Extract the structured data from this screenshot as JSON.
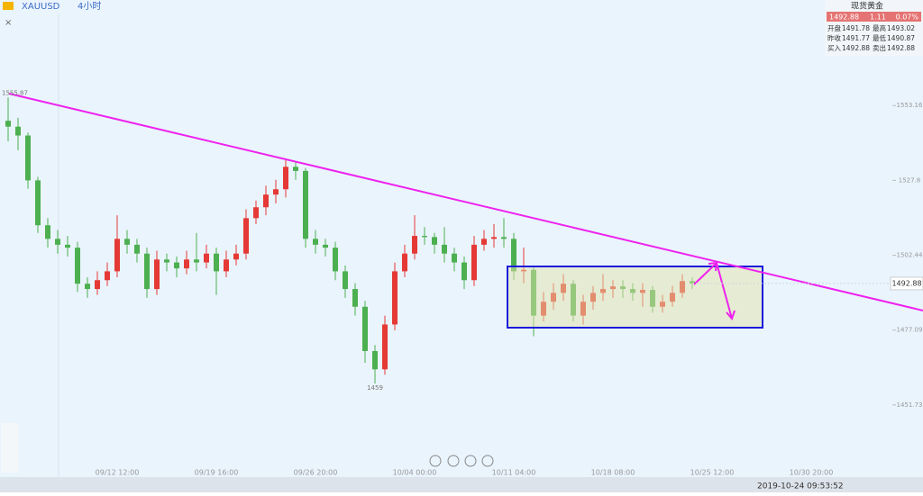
{
  "toolbar": {
    "symbol": "XAUUSD",
    "interval": "4小时"
  },
  "quote": {
    "title": "现货黄金",
    "price": "1492.88",
    "change": "1.11",
    "change_pct": "0.07%",
    "rows": [
      [
        "开盘",
        "1491.78",
        "最高",
        "1493.02"
      ],
      [
        "昨收",
        "1491.77",
        "最低",
        "1490.87"
      ],
      [
        "买入",
        "1492.88",
        "卖出",
        "1492.88"
      ]
    ]
  },
  "status": {
    "time": "2019-10-24 09:53:52"
  },
  "chart_data": {
    "type": "candlestick",
    "up_color": "#e53935",
    "down_color": "#4caf50",
    "ylim": [
      1427.3,
      1588.9
    ],
    "yticks": [
      1553.16,
      1527.8,
      1502.44,
      1477.09,
      1451.73
    ],
    "categories": [
      null,
      null,
      null,
      null,
      null,
      null,
      null,
      null,
      null,
      null,
      null,
      "09/12 12:00",
      null,
      null,
      null,
      null,
      null,
      null,
      null,
      null,
      null,
      "09/19 16:00",
      null,
      null,
      null,
      null,
      null,
      null,
      null,
      null,
      null,
      "09/26 20:00",
      null,
      null,
      null,
      null,
      null,
      null,
      null,
      null,
      null,
      "10/04 00:00",
      null,
      null,
      null,
      null,
      null,
      null,
      null,
      null,
      null,
      "10/11 04:00",
      null,
      null,
      null,
      null,
      null,
      null,
      null,
      null,
      null,
      "10/18 08:00",
      null,
      null,
      null,
      null,
      null,
      null,
      null,
      null,
      null,
      "10/25 12:00",
      null,
      null,
      null,
      null,
      null,
      null,
      null,
      null,
      null,
      "10/30 20:00",
      null
    ],
    "open": [
      1548,
      1546,
      1543,
      1527.8,
      1512.6,
      1508,
      1506,
      1505,
      1492.8,
      1491,
      1494,
      1497,
      1508,
      1506,
      1503,
      1491,
      1501,
      1500,
      1498,
      1501,
      1500,
      1503,
      1497,
      1501,
      1503,
      1515,
      1518.7,
      1523,
      1524.8,
      1532.4,
      1531,
      1508,
      1506,
      1505,
      1497,
      1491,
      1485,
      1470,
      1463.8,
      1479,
      1497,
      1503,
      1509,
      1508.6,
      1506,
      1503,
      1500,
      1494,
      1506,
      1508,
      1508.6,
      1508,
      1497,
      1497.5,
      1482,
      1486.7,
      1489.7,
      1492.8,
      1482,
      1486.7,
      1489.7,
      1491,
      1491.9,
      1491,
      1489.7,
      1490.7,
      1485,
      1486.7,
      1489.7,
      1493.7,
      null,
      null,
      null,
      null,
      null,
      null,
      null,
      null,
      null,
      null,
      null,
      null,
      null
    ],
    "high": [
      1555.87,
      1549,
      1544,
      1529,
      1515,
      1511,
      1509,
      1507,
      1495,
      1497,
      1500,
      1516,
      1511,
      1508,
      1505,
      1504,
      1503,
      1502,
      1504,
      1510,
      1506,
      1505,
      1504,
      1506,
      1518,
      1521,
      1526,
      1528,
      1535,
      1534,
      1532,
      1511,
      1508,
      1507,
      1499,
      1493,
      1487,
      1472,
      1482,
      1500,
      1506,
      1516,
      1512,
      1510,
      1512,
      1505,
      1502,
      1509,
      1511,
      1513,
      1515,
      1510,
      1505,
      1499,
      1490,
      1493,
      1496,
      1494,
      1489,
      1492,
      1496,
      1494,
      1494,
      1493,
      1493,
      1492,
      1489,
      1492,
      1496,
      1495,
      null,
      null,
      null,
      null,
      null,
      null,
      null,
      null,
      null,
      null,
      null,
      null,
      null
    ],
    "low": [
      1541,
      1538,
      1525,
      1510,
      1505,
      1503,
      1502,
      1490,
      1488,
      1489,
      1492,
      1495,
      1503,
      1500,
      1488,
      1489,
      1497,
      1495,
      1496,
      1497,
      1498,
      1489,
      1495,
      1499,
      1501,
      1513,
      1516,
      1520,
      1522,
      1528,
      1505,
      1503,
      1502,
      1494,
      1488,
      1482,
      1466,
      1459,
      1462,
      1477,
      1495,
      1501,
      1506,
      1503,
      1500,
      1497,
      1491,
      1492,
      1504,
      1505,
      1505,
      1494,
      1493,
      1475,
      1480,
      1484,
      1487,
      1480,
      1479,
      1484,
      1487,
      1488,
      1488,
      1487,
      1485,
      1483,
      1483,
      1485,
      1488,
      1491,
      null,
      null,
      null,
      null,
      null,
      null,
      null,
      null,
      null,
      null,
      null,
      null,
      null
    ],
    "close": [
      1546,
      1543,
      1527.8,
      1512.6,
      1508,
      1506,
      1505,
      1492.8,
      1491,
      1494,
      1497,
      1508,
      1506,
      1503,
      1491,
      1501,
      1500,
      1498,
      1501,
      1500,
      1503,
      1497,
      1501,
      1503,
      1515,
      1518.7,
      1523,
      1524.8,
      1532.4,
      1531,
      1508,
      1506,
      1505,
      1497,
      1491,
      1485,
      1470,
      1463.8,
      1479,
      1497,
      1503,
      1509,
      1508.6,
      1506,
      1503,
      1500,
      1494,
      1506,
      1508,
      1508.6,
      1508,
      1497,
      1497.5,
      1482,
      1486.7,
      1489.7,
      1492.8,
      1482,
      1486.7,
      1489.7,
      1491,
      1491.9,
      1491,
      1489.7,
      1490.7,
      1485,
      1486.7,
      1489.7,
      1493.7,
      1492.88,
      null,
      null,
      null,
      null,
      null,
      null,
      null,
      null,
      null,
      null,
      null,
      null,
      null
    ]
  }
}
